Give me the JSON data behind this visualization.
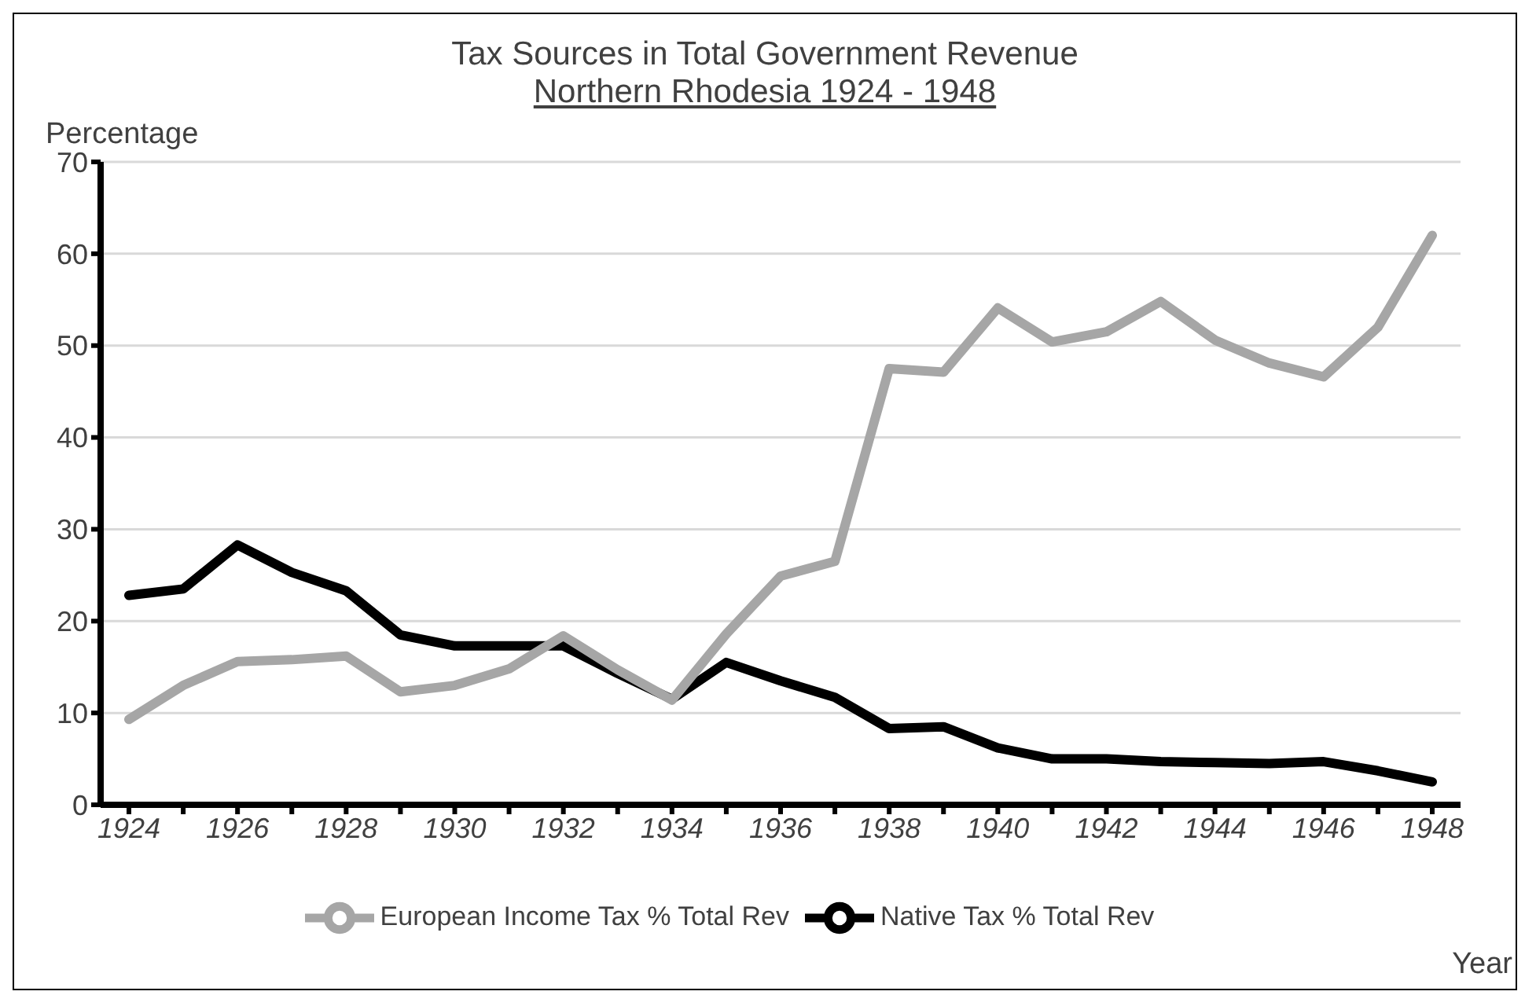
{
  "chart_data": {
    "type": "line",
    "title": "Tax Sources in Total Government Revenue",
    "subtitle": "Northern Rhodesia 1924 - 1948",
    "ylabel": "Percentage",
    "xlabel": "Year",
    "categories": [
      "1924",
      null,
      "1926",
      null,
      "1928",
      null,
      "1930",
      null,
      "1932",
      null,
      "1934",
      null,
      "1936",
      null,
      "1938",
      null,
      "1940",
      null,
      "1942",
      null,
      "1944",
      null,
      "1946",
      null,
      "1948"
    ],
    "series": [
      {
        "name": "Native Tax % Total Rev",
        "color": "#000000",
        "values": [
          22.8,
          23.5,
          28.3,
          25.3,
          23.3,
          18.5,
          17.3,
          17.3,
          17.3,
          14.3,
          11.5,
          15.5,
          13.5,
          11.7,
          8.3,
          8.5,
          6.2,
          5.0,
          5.0,
          4.7,
          4.6,
          4.5,
          4.7,
          3.7,
          2.5
        ]
      },
      {
        "name": "European Income Tax % Total Rev",
        "color": "#a6a6a6",
        "values": [
          9.3,
          13.0,
          15.6,
          15.8,
          16.2,
          12.3,
          13.0,
          14.8,
          18.4,
          14.7,
          11.4,
          18.6,
          24.9,
          26.5,
          47.5,
          47.1,
          54.1,
          50.4,
          51.5,
          54.8,
          50.6,
          48.1,
          46.6,
          52.0,
          62.0
        ]
      }
    ],
    "ylim": [
      0,
      70
    ],
    "yticks": [
      0,
      10,
      20,
      30,
      40,
      50,
      60,
      70
    ],
    "grid": "y",
    "legend": "bottom",
    "marker": "none",
    "line_style": "solid"
  }
}
